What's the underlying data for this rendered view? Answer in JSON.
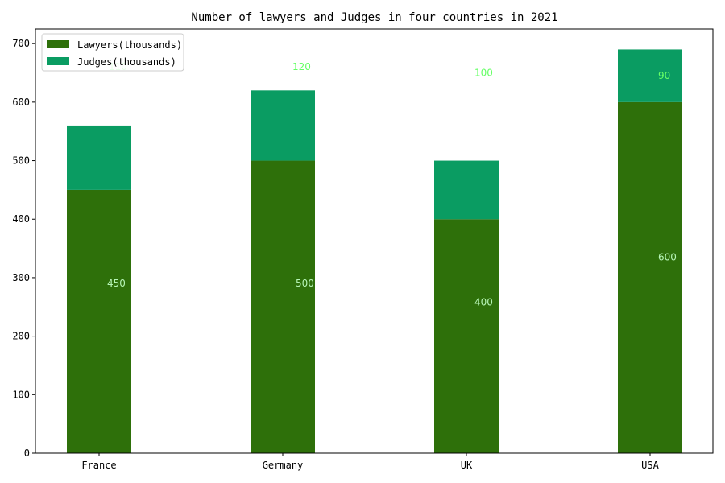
{
  "chart_data": {
    "type": "bar",
    "stacked": true,
    "title": "Number of lawyers and Judges in four countries in 2021",
    "xlabel": "",
    "ylabel": "",
    "categories": [
      "France",
      "Germany",
      "UK",
      "USA"
    ],
    "series": [
      {
        "name": "Lawyers(thousands)",
        "values": [
          450,
          500,
          400,
          600
        ],
        "color": "#2e700a",
        "label_color": "#b7f5b7"
      },
      {
        "name": "Judges(thousands)",
        "values": [
          110,
          120,
          100,
          90
        ],
        "color": "#0a9c62",
        "label_color": "#66ff66"
      }
    ],
    "ylim": [
      0,
      725
    ],
    "yticks": [
      0,
      100,
      200,
      300,
      400,
      500,
      600,
      700
    ],
    "grid": false,
    "legend_position": "top-left"
  }
}
